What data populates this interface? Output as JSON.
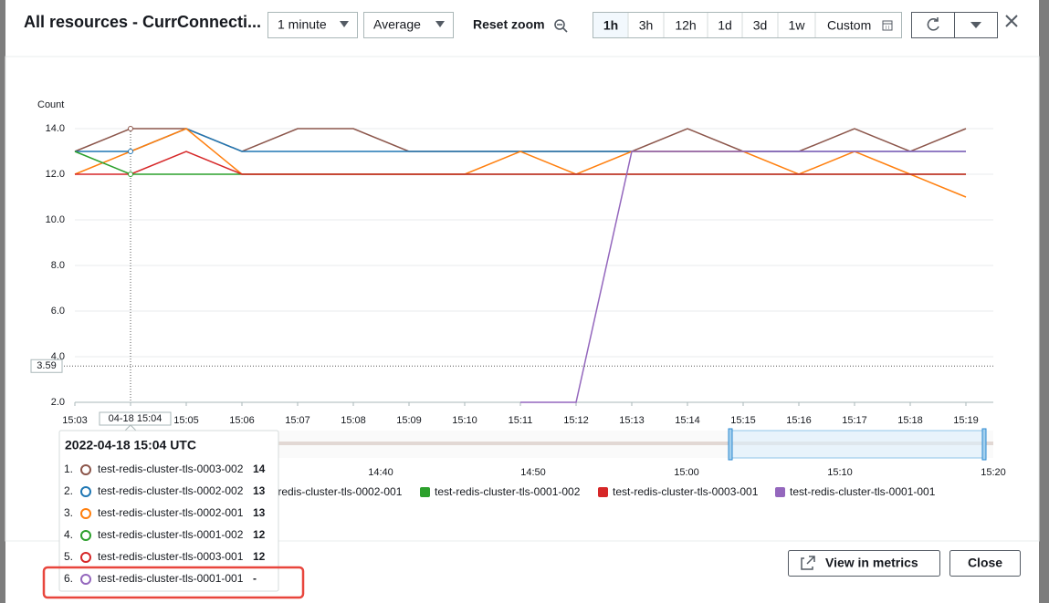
{
  "header": {
    "title": "All resources - CurrConnecti...",
    "period": "1 minute",
    "statistic": "Average",
    "reset_zoom": "Reset zoom",
    "time_ranges": [
      "1h",
      "3h",
      "12h",
      "1d",
      "3d",
      "1w",
      "Custom"
    ]
  },
  "chart_data": {
    "type": "line",
    "y_label": "Count",
    "categories": [
      "15:03",
      "15:04",
      "15:05",
      "15:06",
      "15:07",
      "15:08",
      "15:09",
      "15:10",
      "15:11",
      "15:12",
      "15:13",
      "15:14",
      "15:15",
      "15:16",
      "15:17",
      "15:18",
      "15:19"
    ],
    "series": [
      {
        "name": "test-redis-cluster-tls-0003-002",
        "color": "#8c564b",
        "values": [
          13,
          14,
          14,
          13,
          14,
          14,
          13,
          13,
          13,
          13,
          13,
          14,
          13,
          13,
          14,
          13,
          14
        ]
      },
      {
        "name": "test-redis-cluster-tls-0002-002",
        "color": "#1f77b4",
        "values": [
          13,
          13,
          14,
          13,
          13,
          13,
          13,
          13,
          13,
          13,
          13,
          13,
          13,
          13,
          13,
          13,
          13
        ]
      },
      {
        "name": "test-redis-cluster-tls-0002-001",
        "color": "#ff7f0e",
        "values": [
          12,
          13,
          14,
          12,
          12,
          12,
          12,
          12,
          13,
          12,
          13,
          13,
          13,
          12,
          13,
          12,
          11
        ]
      },
      {
        "name": "test-redis-cluster-tls-0001-002",
        "color": "#2ca02c",
        "values": [
          13,
          12,
          12,
          12,
          12,
          12,
          12,
          12,
          12,
          12,
          12,
          12,
          12,
          12,
          12,
          12,
          12
        ]
      },
      {
        "name": "test-redis-cluster-tls-0003-001",
        "color": "#d62728",
        "values": [
          12,
          12,
          13,
          12,
          12,
          12,
          12,
          12,
          12,
          12,
          12,
          12,
          12,
          12,
          12,
          12,
          12
        ]
      },
      {
        "name": "test-redis-cluster-tls-0001-001",
        "color": "#9467bd",
        "values": [
          null,
          null,
          null,
          null,
          null,
          null,
          null,
          null,
          2,
          2,
          13,
          13,
          13,
          13,
          13,
          13,
          13
        ]
      }
    ],
    "ylim": [
      2,
      14
    ],
    "yticks": [
      {
        "value": 2,
        "label": "2.0"
      },
      {
        "value": 4,
        "label": "4.0"
      },
      {
        "value": 6,
        "label": "6.0"
      },
      {
        "value": 8,
        "label": "8.0"
      },
      {
        "value": 10,
        "label": "10.0"
      },
      {
        "value": 12,
        "label": "12.0"
      },
      {
        "value": 14,
        "label": "14.0"
      }
    ],
    "grid": true,
    "hover_x_label": "04-18 15:04",
    "cursor_y": {
      "value": 3.59,
      "label": "3.59"
    },
    "navigator_ticks": [
      "14:40",
      "14:50",
      "15:00",
      "15:10",
      "15:20"
    ]
  },
  "tooltip": {
    "title": "2022-04-18 15:04 UTC",
    "rows": [
      {
        "rank": "1.",
        "name": "test-redis-cluster-tls-0003-002",
        "value": 14
      },
      {
        "rank": "2.",
        "name": "test-redis-cluster-tls-0002-002",
        "value": 13
      },
      {
        "rank": "3.",
        "name": "test-redis-cluster-tls-0002-001",
        "value": 13
      },
      {
        "rank": "4.",
        "name": "test-redis-cluster-tls-0001-002",
        "value": 12
      },
      {
        "rank": "5.",
        "name": "test-redis-cluster-tls-0003-001",
        "value": 12
      },
      {
        "rank": "6.",
        "name": "test-redis-cluster-tls-0001-001",
        "value": "-"
      }
    ]
  },
  "footer": {
    "view_in_metrics": "View in metrics",
    "close": "Close"
  }
}
